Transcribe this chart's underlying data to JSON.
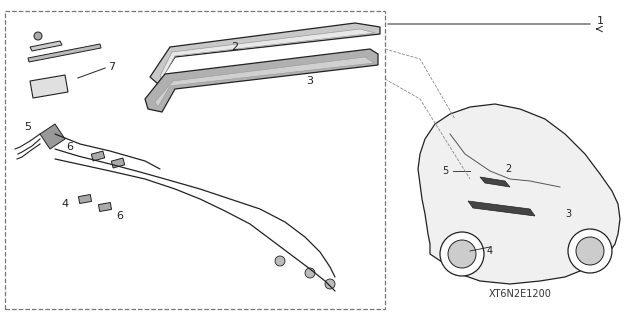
{
  "bg_color": "#ffffff",
  "border_color": "#888888",
  "line_color": "#222222",
  "text_color": "#222222",
  "diagram_code": "XT6N2E1200",
  "title": "",
  "fig_width": 6.4,
  "fig_height": 3.19,
  "dpi": 100
}
